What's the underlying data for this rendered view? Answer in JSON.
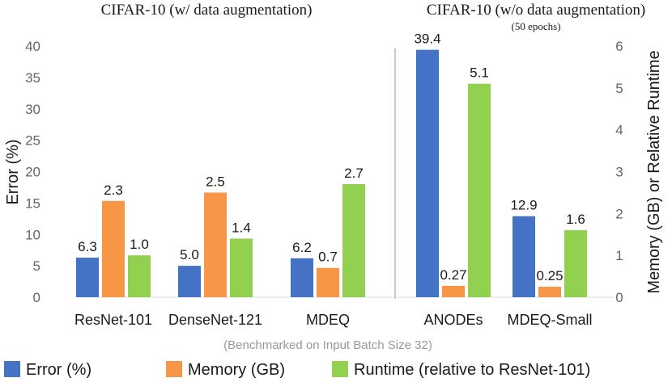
{
  "chart_data": {
    "type": "bar",
    "titles": {
      "left": "CIFAR-10 (w/ data augmentation)",
      "right": "CIFAR-10 (w/o data augmentation)",
      "right_sub": "(50 epochs)"
    },
    "categories": [
      "ResNet-101",
      "DenseNet-121",
      "MDEQ",
      "ANODEs",
      "MDEQ-Small"
    ],
    "left_axis": {
      "label": "Error (%)",
      "ylim": [
        0,
        40
      ],
      "ticks": [
        "0",
        "5",
        "10",
        "15",
        "20",
        "25",
        "30",
        "35",
        "40"
      ]
    },
    "right_axis": {
      "label": "Memory (GB) or Relative Runtime",
      "ylim": [
        0,
        6
      ],
      "ticks": [
        "0",
        "1",
        "2",
        "3",
        "4",
        "5",
        "6"
      ]
    },
    "series": [
      {
        "name": "Error (%)",
        "axis": "left",
        "color": "#4472c4",
        "values": [
          6.3,
          5.0,
          6.2,
          39.4,
          12.9
        ],
        "labels": [
          "6.3",
          "5.0",
          "6.2",
          "39.4",
          "12.9"
        ]
      },
      {
        "name": "Memory (GB)",
        "axis": "right",
        "color": "#f79646",
        "values": [
          2.3,
          2.5,
          0.7,
          0.27,
          0.25
        ],
        "labels": [
          "2.3",
          "2.5",
          "0.7",
          "0.27",
          "0.25"
        ]
      },
      {
        "name": "Runtime (relative to ResNet-101)",
        "axis": "right",
        "color": "#92d050",
        "values": [
          1.0,
          1.4,
          2.7,
          5.1,
          1.6
        ],
        "labels": [
          "1.0",
          "1.4",
          "2.7",
          "5.1",
          "1.6"
        ]
      }
    ],
    "footnote": "(Benchmarked on Input Batch Size 32)",
    "legend_position": "bottom",
    "divider": "between MDEQ and ANODEs",
    "colors": {
      "text": "#1a1a1a",
      "axis_ticks": "#666666",
      "footnote": "#999999",
      "divider": "#c8c8c8"
    }
  }
}
